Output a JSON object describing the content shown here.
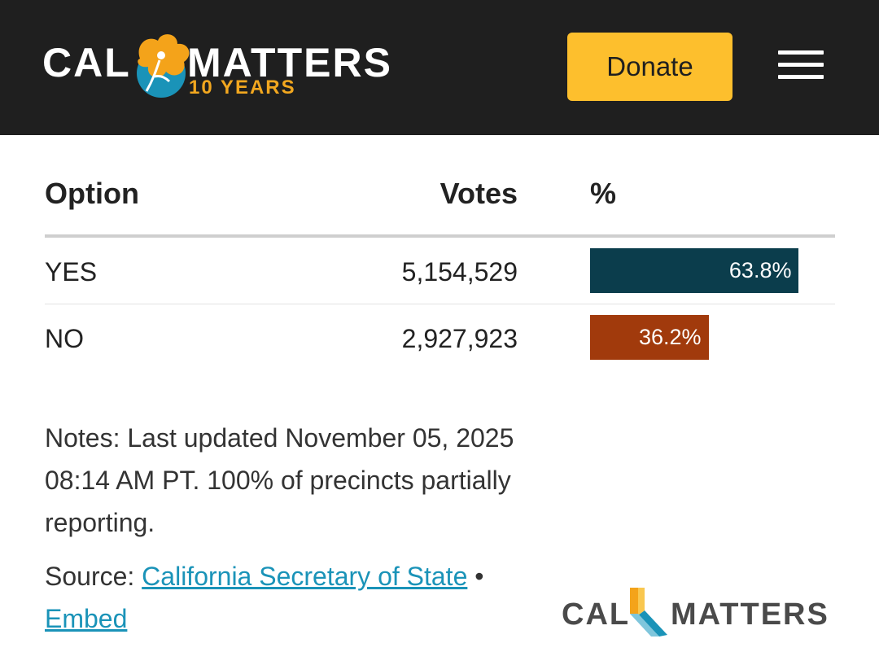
{
  "header": {
    "logo": {
      "word_left": "CAL",
      "word_right": "MATTERS",
      "tagline": "10 YEARS"
    },
    "donate_label": "Donate",
    "menu_icon": "hamburger-menu-icon"
  },
  "table": {
    "columns": {
      "option": "Option",
      "votes": "Votes",
      "percent": "%"
    },
    "rows": [
      {
        "option": "YES",
        "votes": "5,154,529",
        "percent_label": "63.8%",
        "percent": 63.8,
        "color": "#0b3d4c"
      },
      {
        "option": "NO",
        "votes": "2,927,923",
        "percent_label": "36.2%",
        "percent": 36.2,
        "color": "#a13a0c"
      }
    ]
  },
  "notes": {
    "text": "Notes: Last updated November 05, 2025 08:14 AM PT. 100% of precincts partially reporting."
  },
  "source": {
    "prefix": "Source: ",
    "link_label": "California Secretary of State",
    "separator": " •",
    "embed_label": "Embed"
  },
  "footer": {
    "logo": {
      "word_left": "CAL",
      "word_right": "MATTERS"
    }
  },
  "colors": {
    "header_bg": "#1f1f1f",
    "accent": "#fdbf2d",
    "link": "#1a93b8"
  }
}
